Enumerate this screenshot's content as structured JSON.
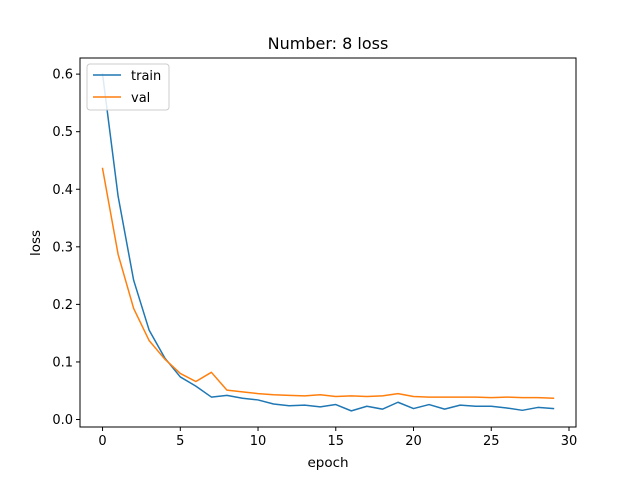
{
  "chart_data": {
    "type": "line",
    "title": "Number: 8 loss",
    "xlabel": "epoch",
    "ylabel": "loss",
    "xlim": [
      -1.45,
      30.45
    ],
    "ylim": [
      -0.013,
      0.628
    ],
    "xticks": [
      0,
      5,
      10,
      15,
      20,
      25,
      30
    ],
    "yticks": [
      0.0,
      0.1,
      0.2,
      0.3,
      0.4,
      0.5,
      0.6
    ],
    "xtick_labels": [
      "0",
      "5",
      "10",
      "15",
      "20",
      "25",
      "30"
    ],
    "ytick_labels": [
      "0.0",
      "0.1",
      "0.2",
      "0.3",
      "0.4",
      "0.5",
      "0.6"
    ],
    "grid": false,
    "legend_position": "top-left",
    "x": [
      0,
      1,
      2,
      3,
      4,
      5,
      6,
      7,
      8,
      9,
      10,
      11,
      12,
      13,
      14,
      15,
      16,
      17,
      18,
      19,
      20,
      21,
      22,
      23,
      24,
      25,
      26,
      27,
      28,
      29
    ],
    "series": [
      {
        "name": "train",
        "color": "#1f77b4",
        "values": [
          0.6,
          0.388,
          0.242,
          0.155,
          0.107,
          0.074,
          0.058,
          0.039,
          0.042,
          0.037,
          0.034,
          0.027,
          0.024,
          0.025,
          0.022,
          0.026,
          0.015,
          0.023,
          0.018,
          0.03,
          0.019,
          0.026,
          0.018,
          0.025,
          0.023,
          0.023,
          0.02,
          0.016,
          0.021,
          0.019
        ]
      },
      {
        "name": "val",
        "color": "#ff7f0e",
        "values": [
          0.436,
          0.287,
          0.193,
          0.137,
          0.105,
          0.08,
          0.066,
          0.082,
          0.051,
          0.048,
          0.045,
          0.043,
          0.042,
          0.041,
          0.043,
          0.04,
          0.041,
          0.04,
          0.041,
          0.045,
          0.04,
          0.039,
          0.039,
          0.039,
          0.039,
          0.038,
          0.039,
          0.038,
          0.038,
          0.037
        ]
      }
    ]
  }
}
